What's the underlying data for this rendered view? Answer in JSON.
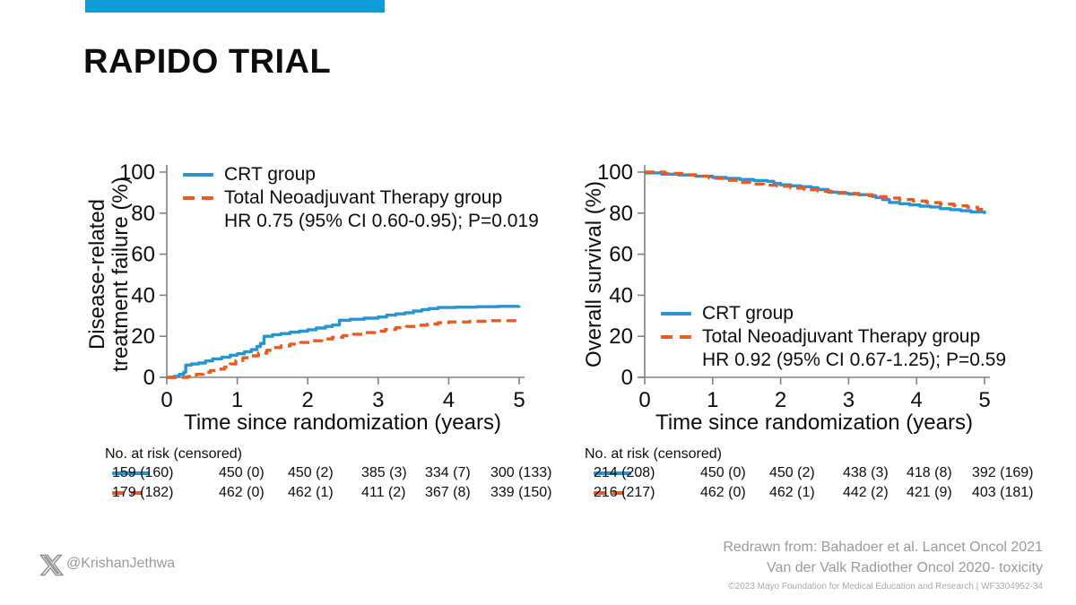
{
  "slide": {
    "title": "RAPIDO TRIAL",
    "accent_color": "#0f9cd8"
  },
  "colors": {
    "crt_blue": "#2795d2",
    "tnt_orange": "#e85c20",
    "axis_gray": "#808080",
    "footer_gray": "#9a9a9a"
  },
  "footer": {
    "twitter_handle": "@KrishanJethwa",
    "redrawn_line1": "Redrawn from: Bahadoer et al. Lancet Oncol 2021",
    "redrawn_line2": "Van der Valk Radiother Oncol 2020- toxicity",
    "copyright": "©2023 Mayo Foundation for Medical Education and Research  |  WF3304952-34"
  },
  "chart_data": [
    {
      "type": "line",
      "step": true,
      "title": "",
      "ylabel_lines": [
        "Disease-related",
        "treatment failure (%)"
      ],
      "xlabel": "Time since randomization (years)",
      "xlim": [
        0,
        5
      ],
      "ylim": [
        0,
        100
      ],
      "xticks": [
        0,
        1,
        2,
        3,
        4,
        5
      ],
      "yticks": [
        0,
        20,
        40,
        60,
        80,
        100
      ],
      "grid": false,
      "legend_position": "upper-left",
      "legend": [
        {
          "label": "CRT group",
          "style": "solid",
          "color": "#2795d2"
        },
        {
          "label": "Total Neoadjuvant Therapy group",
          "style": "dashed",
          "color": "#e85c20"
        }
      ],
      "stats_text": "HR 0.75 (95% CI 0.60-0.95); P=0.019",
      "series": [
        {
          "name": "CRT group",
          "color": "#2795d2",
          "dashed": false,
          "points": [
            [
              0,
              0
            ],
            [
              0.1,
              0.5
            ],
            [
              0.18,
              1.5
            ],
            [
              0.24,
              2.5
            ],
            [
              0.27,
              6
            ],
            [
              0.35,
              6.5
            ],
            [
              0.45,
              7
            ],
            [
              0.55,
              8
            ],
            [
              0.65,
              9
            ],
            [
              0.78,
              9.8
            ],
            [
              0.9,
              10.8
            ],
            [
              1.0,
              11.5
            ],
            [
              1.1,
              12.5
            ],
            [
              1.2,
              13.5
            ],
            [
              1.28,
              15
            ],
            [
              1.33,
              16.5
            ],
            [
              1.38,
              20
            ],
            [
              1.5,
              20.8
            ],
            [
              1.62,
              21.3
            ],
            [
              1.75,
              22
            ],
            [
              1.88,
              22.5
            ],
            [
              2.0,
              23.2
            ],
            [
              2.12,
              24
            ],
            [
              2.25,
              24.8
            ],
            [
              2.35,
              25.5
            ],
            [
              2.45,
              27.8
            ],
            [
              2.6,
              28.3
            ],
            [
              2.8,
              28.8
            ],
            [
              3.0,
              29.4
            ],
            [
              3.12,
              30.3
            ],
            [
              3.25,
              30.9
            ],
            [
              3.38,
              31.5
            ],
            [
              3.5,
              32.3
            ],
            [
              3.62,
              33
            ],
            [
              3.72,
              33.5
            ],
            [
              3.85,
              34
            ],
            [
              4.1,
              34.2
            ],
            [
              4.4,
              34.4
            ],
            [
              4.7,
              34.6
            ],
            [
              5.0,
              34.8
            ]
          ]
        },
        {
          "name": "Total Neoadjuvant Therapy group",
          "color": "#e85c20",
          "dashed": true,
          "points": [
            [
              0,
              0
            ],
            [
              0.3,
              0.4
            ],
            [
              0.42,
              1.5
            ],
            [
              0.52,
              2.5
            ],
            [
              0.62,
              3.3
            ],
            [
              0.72,
              4
            ],
            [
              0.82,
              5
            ],
            [
              0.9,
              6.5
            ],
            [
              0.98,
              8.2
            ],
            [
              1.08,
              9.5
            ],
            [
              1.18,
              10.5
            ],
            [
              1.3,
              11.8
            ],
            [
              1.42,
              13.2
            ],
            [
              1.52,
              14.5
            ],
            [
              1.62,
              15.3
            ],
            [
              1.75,
              16.2
            ],
            [
              1.9,
              17
            ],
            [
              2.05,
              17.8
            ],
            [
              2.2,
              18.7
            ],
            [
              2.35,
              19.5
            ],
            [
              2.5,
              20.3
            ],
            [
              2.65,
              21
            ],
            [
              2.8,
              21.8
            ],
            [
              2.95,
              22.5
            ],
            [
              3.1,
              23.3
            ],
            [
              3.25,
              24.2
            ],
            [
              3.4,
              24.8
            ],
            [
              3.55,
              25.4
            ],
            [
              3.7,
              26
            ],
            [
              3.85,
              26.6
            ],
            [
              4.0,
              27
            ],
            [
              4.3,
              27.3
            ],
            [
              4.6,
              27.6
            ],
            [
              5.0,
              28
            ]
          ]
        }
      ],
      "risk_table": {
        "label": "No. at risk (censored)",
        "rows": [
          {
            "series": "CRT group",
            "style": "solid",
            "values": [
              "450 (0)",
              "450 (2)",
              "385 (3)",
              "334 (7)",
              "300 (133)",
              "159 (160)"
            ]
          },
          {
            "series": "Total Neoadjuvant Therapy group",
            "style": "dashed",
            "values": [
              "462 (0)",
              "462 (1)",
              "411 (2)",
              "367 (8)",
              "339 (150)",
              "179 (182)"
            ]
          }
        ]
      }
    },
    {
      "type": "line",
      "step": true,
      "title": "",
      "ylabel_lines": [
        "Overall survival (%)"
      ],
      "xlabel": "Time since randomization (years)",
      "xlim": [
        0,
        5
      ],
      "ylim": [
        0,
        100
      ],
      "xticks": [
        0,
        1,
        2,
        3,
        4,
        5
      ],
      "yticks": [
        0,
        20,
        40,
        60,
        80,
        100
      ],
      "grid": false,
      "legend_position": "lower-left",
      "legend": [
        {
          "label": "CRT group",
          "style": "solid",
          "color": "#2795d2"
        },
        {
          "label": "Total Neoadjuvant Therapy group",
          "style": "dashed",
          "color": "#e85c20"
        }
      ],
      "stats_text": "HR 0.92 (95% CI 0.67-1.25); P=0.59",
      "series": [
        {
          "name": "CRT group",
          "color": "#2795d2",
          "dashed": false,
          "points": [
            [
              0,
              99.6
            ],
            [
              0.25,
              99
            ],
            [
              0.5,
              98.6
            ],
            [
              0.75,
              98
            ],
            [
              1.0,
              97.4
            ],
            [
              1.2,
              96.9
            ],
            [
              1.4,
              96.4
            ],
            [
              1.6,
              95.9
            ],
            [
              1.8,
              95.5
            ],
            [
              1.9,
              94.5
            ],
            [
              2.0,
              93.8
            ],
            [
              2.15,
              93.3
            ],
            [
              2.3,
              92.9
            ],
            [
              2.45,
              92.4
            ],
            [
              2.55,
              91.5
            ],
            [
              2.7,
              90.2
            ],
            [
              2.85,
              89.7
            ],
            [
              3.0,
              89.3
            ],
            [
              3.15,
              89
            ],
            [
              3.3,
              88.5
            ],
            [
              3.4,
              87.6
            ],
            [
              3.5,
              86.6
            ],
            [
              3.6,
              85.2
            ],
            [
              3.75,
              84.6
            ],
            [
              3.9,
              84
            ],
            [
              4.05,
              83.4
            ],
            [
              4.2,
              83
            ],
            [
              4.35,
              82.2
            ],
            [
              4.5,
              81.7
            ],
            [
              4.65,
              81.2
            ],
            [
              4.8,
              80.6
            ],
            [
              5.0,
              79.6
            ]
          ]
        },
        {
          "name": "Total Neoadjuvant Therapy group",
          "color": "#e85c20",
          "dashed": true,
          "points": [
            [
              0,
              100
            ],
            [
              0.3,
              99.4
            ],
            [
              0.55,
              98.7
            ],
            [
              0.75,
              98
            ],
            [
              0.95,
              97
            ],
            [
              1.15,
              96
            ],
            [
              1.35,
              95
            ],
            [
              1.55,
              94.2
            ],
            [
              1.75,
              93.6
            ],
            [
              1.95,
              93.1
            ],
            [
              2.15,
              92.2
            ],
            [
              2.35,
              91.4
            ],
            [
              2.55,
              90.7
            ],
            [
              2.75,
              90.1
            ],
            [
              2.95,
              89.6
            ],
            [
              3.15,
              89
            ],
            [
              3.35,
              88.1
            ],
            [
              3.55,
              87.4
            ],
            [
              3.75,
              86.6
            ],
            [
              3.95,
              85.9
            ],
            [
              4.15,
              85.1
            ],
            [
              4.35,
              84.4
            ],
            [
              4.55,
              83.6
            ],
            [
              4.75,
              82.9
            ],
            [
              4.9,
              81.8
            ],
            [
              5.0,
              80.4
            ]
          ]
        }
      ],
      "risk_table": {
        "label": "No. at risk (censored)",
        "rows": [
          {
            "series": "CRT group",
            "style": "solid",
            "values": [
              "450 (0)",
              "450 (2)",
              "438 (3)",
              "418 (8)",
              "392 (169)",
              "214 (208)"
            ]
          },
          {
            "series": "Total Neoadjuvant Therapy group",
            "style": "dashed",
            "values": [
              "462 (0)",
              "462 (1)",
              "442 (2)",
              "421 (9)",
              "403 (181)",
              "216 (217)"
            ]
          }
        ]
      }
    }
  ]
}
